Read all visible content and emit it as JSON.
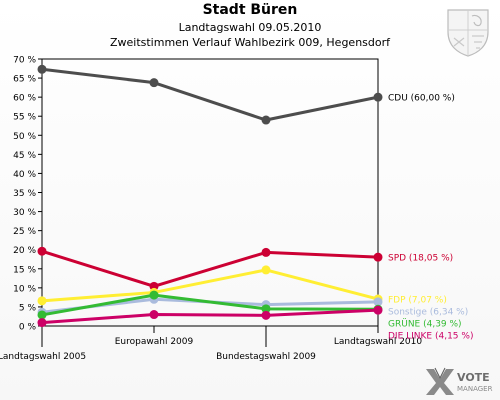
{
  "header": {
    "title": "Stadt Büren",
    "subtitle": "Landtagswahl 09.05.2010",
    "subtitle2": "Zweitstimmen Verlauf Wahlbezirk 009, Hegensdorf"
  },
  "logo": {
    "line1": "VOTE",
    "line2": "MANAGER"
  },
  "chart_data": {
    "type": "line",
    "title": "Stadt Büren",
    "subtitle": "Landtagswahl 09.05.2010 — Zweitstimmen Verlauf Wahlbezirk 009, Hegensdorf",
    "categories": [
      "Landtagswahl 2005",
      "Europawahl 2009",
      "Bundestagswahl 2009",
      "Landtagswahl 2010"
    ],
    "ylim": [
      0,
      70
    ],
    "yticks": [
      0,
      5,
      10,
      15,
      20,
      25,
      30,
      35,
      40,
      45,
      50,
      55,
      60,
      65,
      70
    ],
    "ytick_suffix": " %",
    "grid": false,
    "series": [
      {
        "name": "CDU",
        "label": "CDU (60,00 %)",
        "color": "#4d4d4d",
        "values": [
          67.3,
          63.8,
          54.0,
          60.0
        ]
      },
      {
        "name": "SPD",
        "label": "SPD (18,05 %)",
        "color": "#cc0033",
        "values": [
          19.6,
          10.4,
          19.3,
          18.05
        ]
      },
      {
        "name": "FDP",
        "label": "FDP (7,07 %)",
        "color": "#ffee33",
        "values": [
          6.6,
          8.8,
          14.7,
          7.07
        ]
      },
      {
        "name": "Sonstige",
        "label": "Sonstige (6,34 %)",
        "color": "#aabbdd",
        "values": [
          3.6,
          7.0,
          5.6,
          6.34
        ]
      },
      {
        "name": "GRÜNE",
        "label": "GRÜNE (4,39 %)",
        "color": "#33bb33",
        "values": [
          2.9,
          8.1,
          4.5,
          4.39
        ]
      },
      {
        "name": "DIE LINKE",
        "label": "DIE LINKE (4,15 %)",
        "color": "#cc0066",
        "values": [
          0.9,
          3.0,
          2.8,
          4.15
        ]
      }
    ]
  }
}
